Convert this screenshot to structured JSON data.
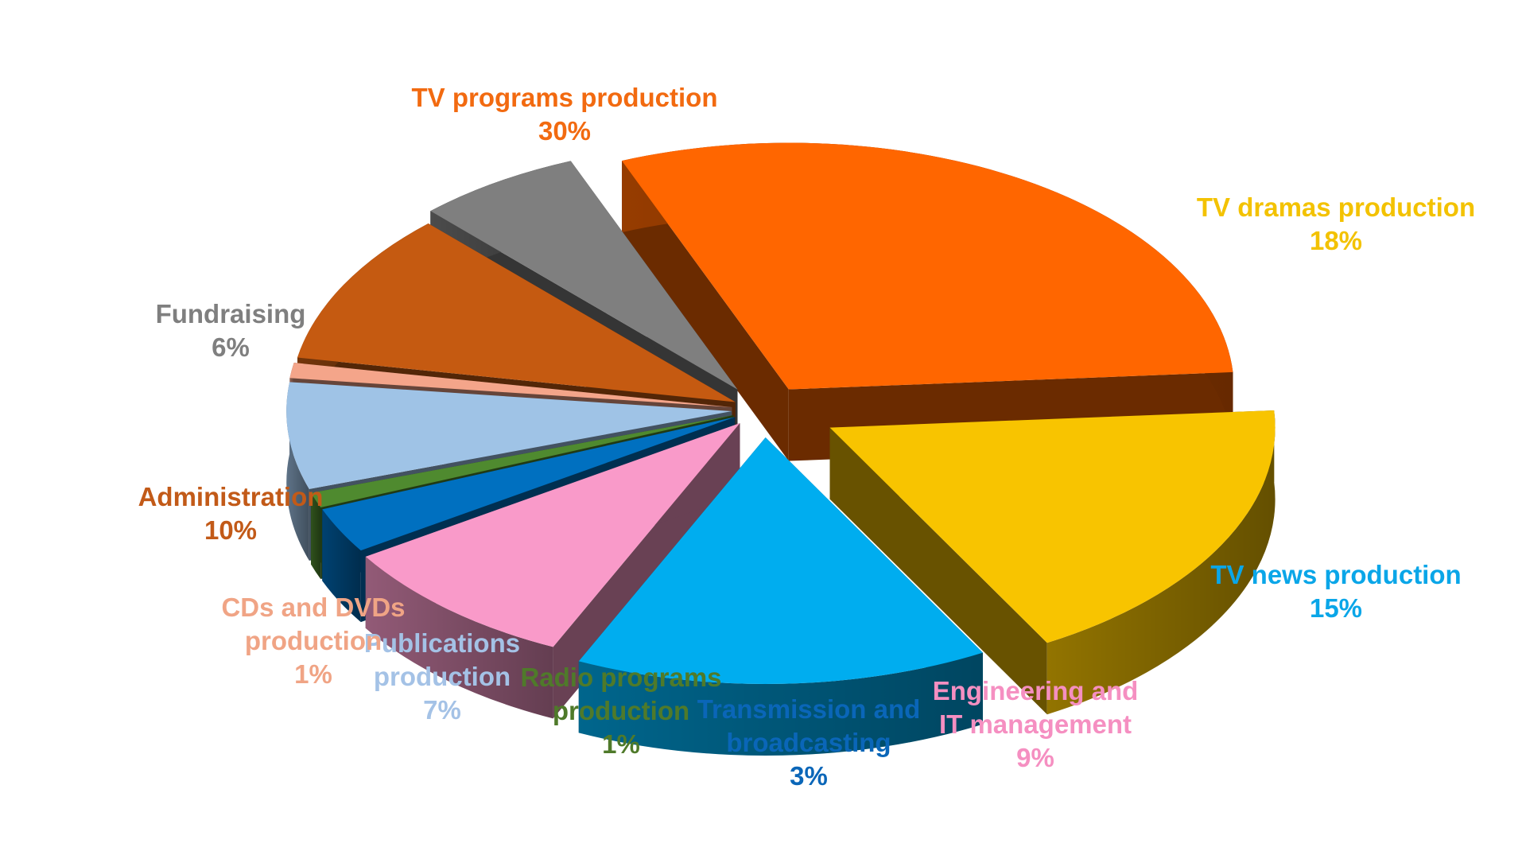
{
  "chart_data": {
    "type": "pie",
    "title": "",
    "style": "3d-exploded",
    "slices": [
      {
        "label": "TV programs production",
        "label_lines": [
          "TV programs production"
        ],
        "value_label": "30%",
        "value": 30,
        "color": "#ff6600",
        "label_color": "#f26a10"
      },
      {
        "label": "TV dramas production",
        "label_lines": [
          "TV dramas production"
        ],
        "value_label": "18%",
        "value": 18,
        "color": "#f8c400",
        "label_color": "#f3c200"
      },
      {
        "label": "TV news production",
        "label_lines": [
          "TV news production"
        ],
        "value_label": "15%",
        "value": 15,
        "color": "#00adef",
        "label_color": "#0aa6e8"
      },
      {
        "label": "Engineering and IT management",
        "label_lines": [
          "Engineering and",
          "IT management"
        ],
        "value_label": "9%",
        "value": 9,
        "color": "#f99ac9",
        "label_color": "#f58fc1"
      },
      {
        "label": "Transmission and broadcasting",
        "label_lines": [
          "Transmission and",
          "broadcasting"
        ],
        "value_label": "3%",
        "value": 3,
        "color": "#0070c0",
        "label_color": "#0a66b8"
      },
      {
        "label": "Radio programs production",
        "label_lines": [
          "Radio programs",
          "production"
        ],
        "value_label": "1%",
        "value": 1,
        "color": "#4f8a2f",
        "label_color": "#4f7a2a"
      },
      {
        "label": "Publications production",
        "label_lines": [
          "Publications",
          "production"
        ],
        "value_label": "7%",
        "value": 7,
        "color": "#9fc3e6",
        "label_color": "#a4c2e6"
      },
      {
        "label": "CDs and DVDs production",
        "label_lines": [
          "CDs and DVDs",
          "production"
        ],
        "value_label": "1%",
        "value": 1,
        "color": "#f4a58a",
        "label_color": "#f0a485"
      },
      {
        "label": "Administration",
        "label_lines": [
          "Administration"
        ],
        "value_label": "10%",
        "value": 10,
        "color": "#c55a11",
        "label_color": "#c25a18"
      },
      {
        "label": "Fundraising",
        "label_lines": [
          "Fundraising"
        ],
        "value_label": "6%",
        "value": 6,
        "color": "#7f7f7f",
        "label_color": "#7f7f7f"
      }
    ]
  }
}
